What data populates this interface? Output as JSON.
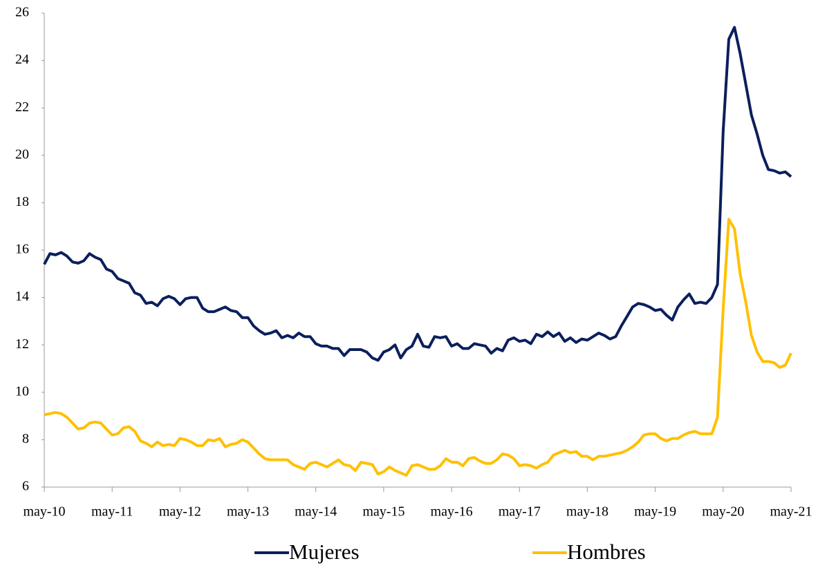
{
  "chart_data": {
    "type": "line",
    "categories": [
      "may-10",
      null,
      null,
      null,
      null,
      null,
      null,
      null,
      null,
      null,
      null,
      null,
      "may-11",
      null,
      null,
      null,
      null,
      null,
      null,
      null,
      null,
      null,
      null,
      null,
      "may-12",
      null,
      null,
      null,
      null,
      null,
      null,
      null,
      null,
      null,
      null,
      null,
      "may-13",
      null,
      null,
      null,
      null,
      null,
      null,
      null,
      null,
      null,
      null,
      null,
      "may-14",
      null,
      null,
      null,
      null,
      null,
      null,
      null,
      null,
      null,
      null,
      null,
      "may-15",
      null,
      null,
      null,
      null,
      null,
      null,
      null,
      null,
      null,
      null,
      null,
      "may-16",
      null,
      null,
      null,
      null,
      null,
      null,
      null,
      null,
      null,
      null,
      null,
      "may-17",
      null,
      null,
      null,
      null,
      null,
      null,
      null,
      null,
      null,
      null,
      null,
      "may-18",
      null,
      null,
      null,
      null,
      null,
      null,
      null,
      null,
      null,
      null,
      null,
      "may-19",
      null,
      null,
      null,
      null,
      null,
      null,
      null,
      null,
      null,
      null,
      null,
      "may-20",
      null,
      null,
      null,
      null,
      null,
      null,
      null,
      null,
      null,
      null,
      null,
      "may-21"
    ],
    "series": [
      {
        "name": "Mujeres",
        "color": "#0b1f5c",
        "values": [
          15.4,
          15.85,
          15.8,
          15.9,
          15.75,
          15.5,
          15.45,
          15.55,
          15.85,
          15.7,
          15.6,
          15.2,
          15.1,
          14.8,
          14.7,
          14.6,
          14.2,
          14.1,
          13.75,
          13.8,
          13.65,
          13.95,
          14.05,
          13.95,
          13.7,
          13.95,
          14.0,
          14.0,
          13.55,
          13.4,
          13.4,
          13.5,
          13.6,
          13.45,
          13.4,
          13.15,
          13.15,
          12.8,
          12.6,
          12.45,
          12.5,
          12.6,
          12.3,
          12.4,
          12.3,
          12.5,
          12.35,
          12.35,
          12.05,
          11.95,
          11.95,
          11.85,
          11.85,
          11.55,
          11.8,
          11.8,
          11.8,
          11.7,
          11.45,
          11.35,
          11.7,
          11.8,
          12.0,
          11.45,
          11.8,
          11.95,
          12.45,
          11.95,
          11.9,
          12.35,
          12.3,
          12.35,
          11.95,
          12.05,
          11.85,
          11.85,
          12.05,
          12.0,
          11.95,
          11.65,
          11.85,
          11.75,
          12.2,
          12.3,
          12.15,
          12.2,
          12.05,
          12.45,
          12.35,
          12.55,
          12.35,
          12.5,
          12.15,
          12.3,
          12.1,
          12.25,
          12.2,
          12.35,
          12.5,
          12.4,
          12.25,
          12.35,
          12.8,
          13.2,
          13.6,
          13.75,
          13.7,
          13.6,
          13.45,
          13.5,
          13.25,
          13.05,
          13.6,
          13.9,
          14.15,
          13.75,
          13.8,
          13.75,
          14.0,
          14.55,
          21.0,
          24.9,
          25.4,
          24.3,
          23.0,
          21.7,
          20.9,
          20.0,
          19.4,
          19.35,
          19.25,
          19.3,
          19.1
        ]
      },
      {
        "name": "Hombres",
        "color": "#ffc000",
        "values": [
          9.05,
          9.1,
          9.15,
          9.1,
          8.95,
          8.7,
          8.45,
          8.5,
          8.7,
          8.75,
          8.7,
          8.45,
          8.2,
          8.25,
          8.5,
          8.55,
          8.35,
          7.95,
          7.85,
          7.7,
          7.9,
          7.75,
          7.8,
          7.75,
          8.05,
          8.0,
          7.9,
          7.75,
          7.75,
          8.0,
          7.95,
          8.05,
          7.7,
          7.8,
          7.85,
          8.0,
          7.9,
          7.65,
          7.4,
          7.2,
          7.15,
          7.15,
          7.15,
          7.15,
          6.95,
          6.85,
          6.75,
          7.0,
          7.05,
          6.95,
          6.85,
          7.0,
          7.15,
          6.95,
          6.9,
          6.7,
          7.05,
          7.0,
          6.95,
          6.55,
          6.65,
          6.85,
          6.7,
          6.6,
          6.5,
          6.9,
          6.95,
          6.85,
          6.75,
          6.75,
          6.9,
          7.2,
          7.05,
          7.05,
          6.9,
          7.2,
          7.25,
          7.1,
          7.0,
          7.0,
          7.15,
          7.4,
          7.35,
          7.2,
          6.9,
          6.95,
          6.9,
          6.8,
          6.95,
          7.05,
          7.35,
          7.45,
          7.55,
          7.45,
          7.5,
          7.3,
          7.3,
          7.15,
          7.3,
          7.3,
          7.35,
          7.4,
          7.45,
          7.55,
          7.7,
          7.9,
          8.2,
          8.25,
          8.25,
          8.05,
          7.95,
          8.05,
          8.05,
          8.2,
          8.3,
          8.35,
          8.25,
          8.25,
          8.25,
          8.95,
          13.5,
          17.3,
          16.9,
          15.0,
          13.8,
          12.4,
          11.7,
          11.3,
          11.3,
          11.25,
          11.05,
          11.15,
          11.65
        ]
      }
    ],
    "ylim": [
      6,
      26
    ],
    "yticks": [
      6,
      8,
      10,
      12,
      14,
      16,
      18,
      20,
      22,
      24,
      26
    ],
    "grid": false,
    "legend": "bottom"
  }
}
